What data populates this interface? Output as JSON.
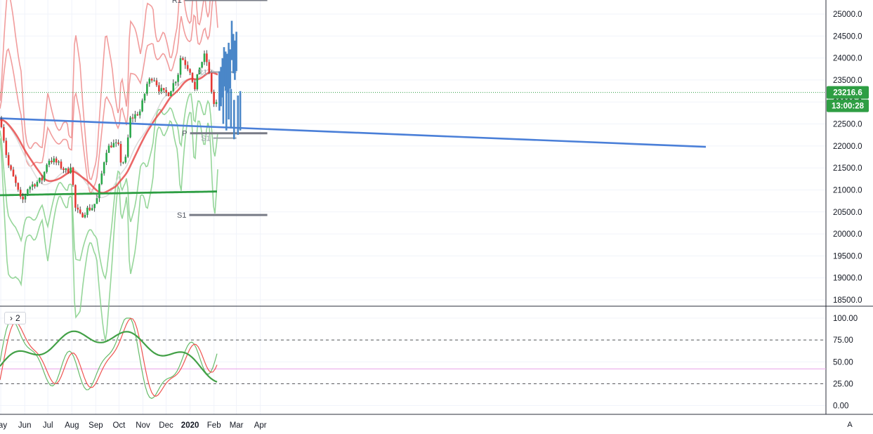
{
  "chart_data": [
    {
      "type": "candlestick",
      "y_ticks": [
        "25000.0",
        "24500.0",
        "24000.0",
        "23500.0",
        "23000.0",
        "22500.0",
        "22000.0",
        "21500.0",
        "21000.0",
        "20500.0",
        "20000.0",
        "19500.0",
        "19000.0",
        "18500.0"
      ],
      "ylim": [
        18400,
        25300
      ],
      "x_ticks": [
        "ay",
        "Jun",
        "Jul",
        "Aug",
        "Sep",
        "Oct",
        "Nov",
        "Dec",
        "2020",
        "Feb",
        "Mar",
        "Apr"
      ],
      "last_price": "23216.6",
      "countdown": "13:00:28",
      "price_path": [
        [
          "2019-05-01",
          22600
        ],
        [
          "2019-05-10",
          21600
        ],
        [
          "2019-05-20",
          21150
        ],
        [
          "2019-05-28",
          20700
        ],
        [
          "2019-06-05",
          21050
        ],
        [
          "2019-06-14",
          21150
        ],
        [
          "2019-06-24",
          21250
        ],
        [
          "2019-07-01",
          21700
        ],
        [
          "2019-07-10",
          21650
        ],
        [
          "2019-07-20",
          21500
        ],
        [
          "2019-07-26",
          21400
        ],
        [
          "2019-07-31",
          21600
        ],
        [
          "2019-08-05",
          20600
        ],
        [
          "2019-08-12",
          20400
        ],
        [
          "2019-08-20",
          20550
        ],
        [
          "2019-08-27",
          20600
        ],
        [
          "2019-09-02",
          20750
        ],
        [
          "2019-09-07",
          21200
        ],
        [
          "2019-09-14",
          21900
        ],
        [
          "2019-09-22",
          22050
        ],
        [
          "2019-09-30",
          22000
        ],
        [
          "2019-10-04",
          21600
        ],
        [
          "2019-10-10",
          21700
        ],
        [
          "2019-10-15",
          22600
        ],
        [
          "2019-10-22",
          22700
        ],
        [
          "2019-10-29",
          22800
        ],
        [
          "2019-11-06",
          23400
        ],
        [
          "2019-11-14",
          23600
        ],
        [
          "2019-11-22",
          23300
        ],
        [
          "2019-11-28",
          23200
        ],
        [
          "2019-12-04",
          23200
        ],
        [
          "2019-12-10",
          23400
        ],
        [
          "2019-12-16",
          23600
        ],
        [
          "2019-12-20",
          24050
        ],
        [
          "2019-12-27",
          23850
        ],
        [
          "2020-01-02",
          23700
        ],
        [
          "2020-01-07",
          23250
        ],
        [
          "2020-01-13",
          23800
        ],
        [
          "2020-01-20",
          24050
        ],
        [
          "2020-01-24",
          23850
        ],
        [
          "2020-01-28",
          23350
        ],
        [
          "2020-01-31",
          23000
        ],
        [
          "2020-02-03",
          22850
        ],
        [
          "2020-02-06",
          23216.6
        ]
      ],
      "pivots": [
        {
          "label": "R1",
          "value": 25320,
          "from": "2019-12-25",
          "to": "2020-04-10"
        },
        {
          "label": "R1",
          "value": 23680,
          "from": "2020-01-27",
          "to": "2020-03-01"
        },
        {
          "label": "P",
          "value": 22290,
          "from": "2020-01-01",
          "to": "2020-04-10"
        },
        {
          "label": "S1",
          "value": 22180,
          "from": "2020-01-31",
          "to": "2020-03-01"
        },
        {
          "label": "S1",
          "value": 20430,
          "from": "2019-12-31",
          "to": "2020-04-10"
        }
      ],
      "projection": [
        [
          "2020-02-08",
          23250
        ],
        [
          "2020-02-10",
          23350
        ],
        [
          "2020-02-12",
          23550
        ],
        [
          "2020-02-14",
          23800
        ],
        [
          "2020-02-16",
          23700
        ],
        [
          "2020-02-18",
          23650
        ],
        [
          "2020-02-20",
          23900
        ],
        [
          "2020-02-22",
          23750
        ],
        [
          "2020-02-24",
          24400
        ],
        [
          "2020-02-26",
          24100
        ],
        [
          "2020-02-28",
          23950
        ],
        [
          "2020-03-01",
          24150
        ],
        [
          "2020-02-13",
          22950
        ],
        [
          "2020-02-17",
          22800
        ],
        [
          "2020-02-20",
          23050
        ],
        [
          "2020-02-23",
          22850
        ],
        [
          "2020-02-27",
          22600
        ],
        [
          "2020-03-03",
          22700
        ],
        [
          "2020-03-06",
          22800
        ]
      ]
    },
    {
      "type": "line",
      "y_ticks": [
        "100.00",
        "75.00",
        "50.00",
        "25.00",
        "0.00"
      ],
      "ylim": [
        -8,
        104
      ],
      "dashed_levels": [
        75,
        25
      ],
      "mid_level": 42,
      "panel_label": "2"
    }
  ],
  "ui": {
    "auto_label": "A"
  },
  "colors": {
    "up": "#26a69a",
    "down": "#ef5350",
    "trend": "#4a7fd8",
    "avg": "#2e9e43",
    "upper_band": "#ef8b8b",
    "lower_band": "#8bd18f",
    "projection": "#4a87c8",
    "pivot": "#787b86",
    "badge_dark": "#2e9e43",
    "badge_grey": "#5d606b"
  }
}
